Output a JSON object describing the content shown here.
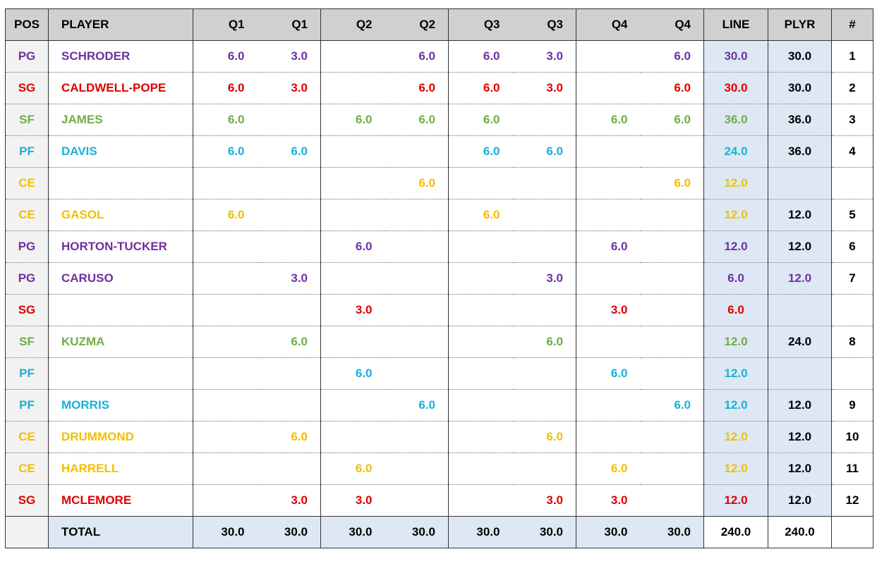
{
  "colors": {
    "PG": "#7030a0",
    "SG": "#e00000",
    "SF": "#70ad47",
    "PF": "#1ab0d8",
    "CE": "#f0c000"
  },
  "headers": [
    "POS",
    "PLAYER",
    "Q1",
    "Q1",
    "Q2",
    "Q2",
    "Q3",
    "Q3",
    "Q4",
    "Q4",
    "LINE",
    "PLYR",
    "#"
  ],
  "rows": [
    {
      "pos": "PG",
      "player": "SCHRODER",
      "q": [
        "6.0",
        "3.0",
        "",
        "6.0",
        "6.0",
        "3.0",
        "",
        "6.0"
      ],
      "line": "30.0",
      "plyr": "30.0",
      "plyr_color": "#000",
      "num": "1"
    },
    {
      "pos": "SG",
      "player": "CALDWELL-POPE",
      "q": [
        "6.0",
        "3.0",
        "",
        "6.0",
        "6.0",
        "3.0",
        "",
        "6.0"
      ],
      "line": "30.0",
      "plyr": "30.0",
      "plyr_color": "#000",
      "num": "2"
    },
    {
      "pos": "SF",
      "player": "JAMES",
      "q": [
        "6.0",
        "",
        "6.0",
        "6.0",
        "6.0",
        "",
        "6.0",
        "6.0"
      ],
      "line": "36.0",
      "plyr": "36.0",
      "plyr_color": "#000",
      "num": "3"
    },
    {
      "pos": "PF",
      "player": "DAVIS",
      "q": [
        "6.0",
        "6.0",
        "",
        "",
        "6.0",
        "6.0",
        "",
        ""
      ],
      "line": "24.0",
      "plyr": "36.0",
      "plyr_color": "#000",
      "num": "4"
    },
    {
      "pos": "CE",
      "player": "",
      "q": [
        "",
        "",
        "",
        "6.0",
        "",
        "",
        "",
        "6.0"
      ],
      "line": "12.0",
      "plyr": "",
      "plyr_color": "#000",
      "num": ""
    },
    {
      "pos": "CE",
      "player": "GASOL",
      "q": [
        "6.0",
        "",
        "",
        "",
        "6.0",
        "",
        "",
        ""
      ],
      "line": "12.0",
      "plyr": "12.0",
      "plyr_color": "#000",
      "num": "5"
    },
    {
      "pos": "PG",
      "player": "HORTON-TUCKER",
      "q": [
        "",
        "",
        "6.0",
        "",
        "",
        "",
        "6.0",
        ""
      ],
      "line": "12.0",
      "plyr": "12.0",
      "plyr_color": "#000",
      "num": "6"
    },
    {
      "pos": "PG",
      "player": "CARUSO",
      "q": [
        "",
        "3.0",
        "",
        "",
        "",
        "3.0",
        "",
        ""
      ],
      "line": "6.0",
      "plyr": "12.0",
      "plyr_color": "#7030a0",
      "num": "7"
    },
    {
      "pos": "SG",
      "player": "",
      "q": [
        "",
        "",
        "3.0",
        "",
        "",
        "",
        "3.0",
        ""
      ],
      "line": "6.0",
      "plyr": "",
      "plyr_color": "#000",
      "num": ""
    },
    {
      "pos": "SF",
      "player": "KUZMA",
      "q": [
        "",
        "6.0",
        "",
        "",
        "",
        "6.0",
        "",
        ""
      ],
      "line": "12.0",
      "plyr": "24.0",
      "plyr_color": "#000",
      "num": "8"
    },
    {
      "pos": "PF",
      "player": "",
      "q": [
        "",
        "",
        "6.0",
        "",
        "",
        "",
        "6.0",
        ""
      ],
      "line": "12.0",
      "plyr": "",
      "plyr_color": "#000",
      "num": ""
    },
    {
      "pos": "PF",
      "player": "MORRIS",
      "q": [
        "",
        "",
        "",
        "6.0",
        "",
        "",
        "",
        "6.0"
      ],
      "line": "12.0",
      "plyr": "12.0",
      "plyr_color": "#000",
      "num": "9"
    },
    {
      "pos": "CE",
      "player": "DRUMMOND",
      "q": [
        "",
        "6.0",
        "",
        "",
        "",
        "6.0",
        "",
        ""
      ],
      "line": "12.0",
      "plyr": "12.0",
      "plyr_color": "#000",
      "num": "10"
    },
    {
      "pos": "CE",
      "player": "HARRELL",
      "q": [
        "",
        "",
        "6.0",
        "",
        "",
        "",
        "6.0",
        ""
      ],
      "line": "12.0",
      "plyr": "12.0",
      "plyr_color": "#000",
      "num": "11"
    },
    {
      "pos": "SG",
      "player": "MCLEMORE",
      "q": [
        "",
        "3.0",
        "3.0",
        "",
        "",
        "3.0",
        "3.0",
        ""
      ],
      "line": "12.0",
      "plyr": "12.0",
      "plyr_color": "#000",
      "num": "12"
    }
  ],
  "total": {
    "label": "TOTAL",
    "q": [
      "30.0",
      "30.0",
      "30.0",
      "30.0",
      "30.0",
      "30.0",
      "30.0",
      "30.0"
    ],
    "line": "240.0",
    "plyr": "240.0"
  }
}
